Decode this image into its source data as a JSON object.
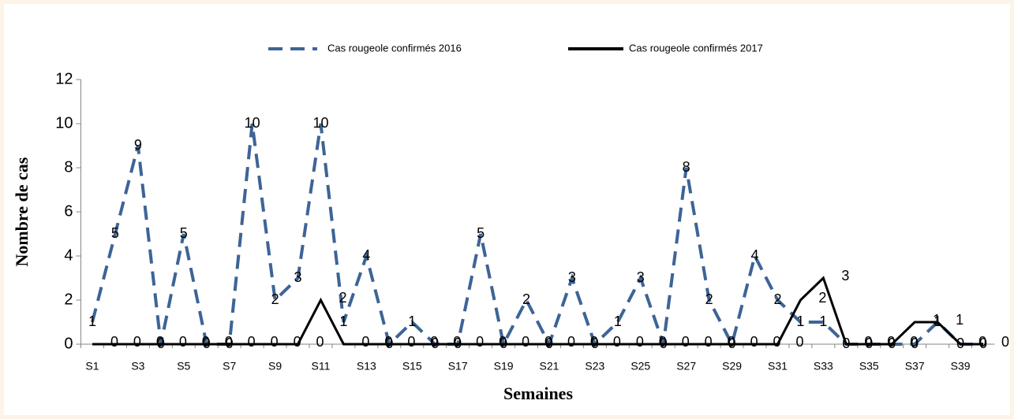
{
  "chart_data": {
    "type": "line",
    "x_label": "Semaines",
    "y_label": "Nombre de cas",
    "categories": [
      "S1",
      null,
      "S3",
      null,
      "S5",
      null,
      "S7",
      null,
      "S9",
      null,
      "S11",
      null,
      "S13",
      null,
      "S15",
      null,
      "S17",
      null,
      "S19",
      null,
      "S21",
      null,
      "S23",
      null,
      "S25",
      null,
      "S27",
      null,
      "S29",
      null,
      "S31",
      null,
      "S33",
      null,
      "S35",
      null,
      "S37",
      null,
      "S39",
      null
    ],
    "series": [
      {
        "name": "Cas rougeole confirmés 2016",
        "color": "#3d6496",
        "dashed": true,
        "values": [
          1,
          5,
          9,
          0,
          5,
          0,
          0,
          10,
          2,
          3,
          10,
          1,
          4,
          0,
          1,
          0,
          0,
          5,
          0,
          2,
          0,
          3,
          0,
          1,
          3,
          0,
          8,
          2,
          0,
          4,
          2,
          1,
          1,
          0,
          0,
          0,
          0,
          1,
          0,
          0
        ]
      },
      {
        "name": "Cas rougeole confirmés 2017",
        "color": "#000000",
        "dashed": false,
        "values": [
          0,
          0,
          0,
          0,
          0,
          0,
          0,
          0,
          0,
          0,
          2,
          0,
          0,
          0,
          0,
          0,
          0,
          0,
          0,
          0,
          0,
          0,
          0,
          0,
          0,
          0,
          0,
          0,
          0,
          0,
          0,
          2,
          3,
          0,
          0,
          0,
          1,
          1,
          0,
          0
        ]
      }
    ],
    "ylim": [
      0,
      12
    ],
    "yticks": [
      0,
      2,
      4,
      6,
      8,
      10,
      12
    ],
    "legend": "top"
  }
}
